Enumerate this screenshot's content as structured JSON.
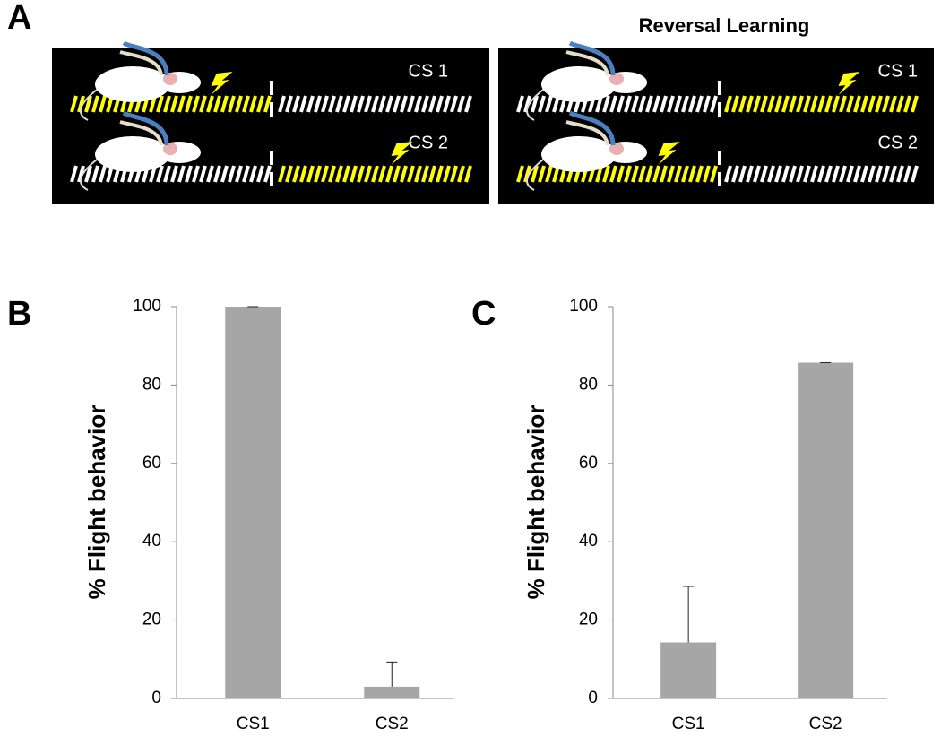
{
  "diagram": {
    "panel_label": "A",
    "title": "Reversal Learning",
    "labels": [
      "CS 1",
      "CS 2",
      "CS 1",
      "CS 2"
    ]
  },
  "chart_data": [
    {
      "type": "bar",
      "panel": "B",
      "ylabel": "% Flight behavior",
      "categories": [
        "CS1",
        "CS2"
      ],
      "values": [
        100,
        3
      ],
      "errors": [
        0,
        6.3
      ],
      "color": "#a6a6a6",
      "ylim": [
        0,
        100
      ],
      "yticks": [
        0,
        20,
        40,
        60,
        80,
        100
      ]
    },
    {
      "type": "bar",
      "panel": "C",
      "ylabel": "% Flight behavior",
      "categories": [
        "CS1",
        "CS2"
      ],
      "values": [
        14.3,
        85.7
      ],
      "errors": [
        14.3,
        0
      ],
      "color": "#a6a6a6",
      "ylim": [
        0,
        100
      ],
      "yticks": [
        0,
        20,
        40,
        60,
        80,
        100
      ]
    }
  ]
}
